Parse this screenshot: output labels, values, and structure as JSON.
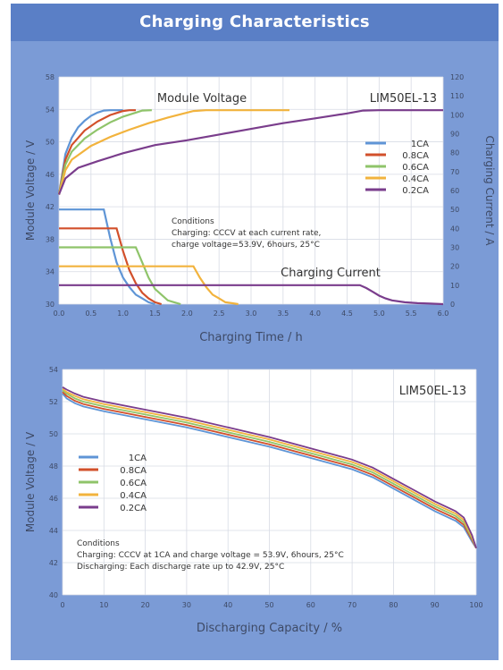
{
  "page": {
    "title": "Charging Characteristics",
    "colors": {
      "panel": "#7b9bd6",
      "title_bar": "#5a7fc6",
      "plot_bg": "#ffffff",
      "grid": "#d7dbe4",
      "axis_text": "#3e4a66"
    }
  },
  "chart_data": [
    {
      "type": "line",
      "model": "LIM50EL-13",
      "xlabel": "Charging Time / h",
      "ylabel": "Module Voltage / V",
      "y2label": "Charging Current / A",
      "xlim": [
        0,
        6
      ],
      "ylim": [
        30,
        58
      ],
      "y2lim": [
        0,
        120
      ],
      "x_ticks": [
        "0.0",
        "0.5",
        "1.0",
        "1.5",
        "2.0",
        "2.5",
        "3.0",
        "3.5",
        "4.0",
        "4.5",
        "5.0",
        "5.5",
        "6.0"
      ],
      "y_ticks": [
        "30",
        "34",
        "38",
        "42",
        "46",
        "50",
        "54",
        "58"
      ],
      "y2_ticks": [
        "0",
        "10",
        "20",
        "30",
        "40",
        "50",
        "60",
        "70",
        "80",
        "90",
        "100",
        "110",
        "120"
      ],
      "grid": true,
      "legend_position": "right",
      "annotations": {
        "voltage_label": "Module Voltage",
        "current_label": "Charging Current",
        "conditions_title": "Conditions",
        "conditions_line1": "Charging: CCCV at each current rate,",
        "conditions_line2": "charge voltage=53.9V, 6hours, 25°C"
      },
      "series": [
        {
          "name": "1CA",
          "color": "#5f95d6",
          "voltage": {
            "x": [
              0,
              0.1,
              0.2,
              0.3,
              0.4,
              0.5,
              0.6,
              0.7,
              0.8,
              0.85,
              0.9,
              1.0
            ],
            "y": [
              43.5,
              48.5,
              50.5,
              51.8,
              52.6,
              53.2,
              53.6,
              53.85,
              53.9,
              53.9,
              53.9,
              53.9
            ]
          },
          "current": {
            "x": [
              0,
              0.5,
              0.7,
              0.8,
              0.9,
              1.0,
              1.1,
              1.2,
              1.3,
              1.4,
              1.5
            ],
            "y": [
              50,
              50,
              50,
              35,
              22,
              14,
              9,
              5,
              3,
              1,
              0
            ]
          }
        },
        {
          "name": "0.8CA",
          "color": "#d2502b",
          "voltage": {
            "x": [
              0,
              0.1,
              0.2,
              0.4,
              0.6,
              0.8,
              1.0,
              1.1,
              1.2
            ],
            "y": [
              43.5,
              47.8,
              49.6,
              51.4,
              52.5,
              53.3,
              53.8,
              53.9,
              53.9
            ]
          },
          "current": {
            "x": [
              0,
              0.9,
              1.0,
              1.1,
              1.2,
              1.3,
              1.4,
              1.5,
              1.6
            ],
            "y": [
              40,
              40,
              28,
              18,
              11,
              6,
              3,
              1,
              0
            ]
          }
        },
        {
          "name": "0.6CA",
          "color": "#8fc46a",
          "voltage": {
            "x": [
              0,
              0.1,
              0.2,
              0.4,
              0.6,
              0.8,
              1.0,
              1.2,
              1.3,
              1.45
            ],
            "y": [
              43.5,
              47.2,
              48.8,
              50.4,
              51.5,
              52.4,
              53.1,
              53.6,
              53.85,
              53.9
            ]
          },
          "current": {
            "x": [
              0,
              1.2,
              1.3,
              1.4,
              1.5,
              1.6,
              1.7,
              1.8,
              1.9
            ],
            "y": [
              30,
              30,
              22,
              14,
              8,
              5,
              2,
              1,
              0
            ]
          }
        },
        {
          "name": "0.4CA",
          "color": "#f2b33d",
          "voltage": {
            "x": [
              0,
              0.1,
              0.2,
              0.5,
              0.8,
              1.1,
              1.4,
              1.7,
              2.0,
              2.1,
              2.3,
              3.6
            ],
            "y": [
              43.5,
              46.5,
              47.8,
              49.5,
              50.6,
              51.5,
              52.3,
              53.0,
              53.6,
              53.8,
              53.9,
              53.9
            ]
          },
          "current": {
            "x": [
              0,
              2.1,
              2.2,
              2.3,
              2.4,
              2.5,
              2.6,
              2.7,
              2.8
            ],
            "y": [
              20,
              20,
              14,
              9,
              5,
              3,
              1,
              0.5,
              0
            ]
          }
        },
        {
          "name": "0.2CA",
          "color": "#7a3d8c",
          "voltage": {
            "x": [
              0,
              0.1,
              0.3,
              0.6,
              1.0,
              1.5,
              2.0,
              2.5,
              3.0,
              3.5,
              4.0,
              4.5,
              4.75,
              5.0,
              6.0
            ],
            "y": [
              43.5,
              45.5,
              46.8,
              47.6,
              48.6,
              49.6,
              50.2,
              50.9,
              51.6,
              52.3,
              52.9,
              53.5,
              53.85,
              53.9,
              53.9
            ]
          },
          "current": {
            "x": [
              0,
              4.7,
              4.8,
              4.9,
              5.0,
              5.1,
              5.2,
              5.4,
              5.6,
              5.8,
              6.0
            ],
            "y": [
              10,
              10,
              8.5,
              6.5,
              4.5,
              3,
              2,
              1,
              0.5,
              0.3,
              0
            ]
          }
        }
      ]
    },
    {
      "type": "line",
      "model": "LIM50EL-13",
      "xlabel": "Discharging Capacity / %",
      "ylabel": "Module Voltage / V",
      "xlim": [
        0,
        100
      ],
      "ylim": [
        40,
        54
      ],
      "x_ticks": [
        "0",
        "10",
        "20",
        "30",
        "40",
        "50",
        "60",
        "70",
        "80",
        "90",
        "100"
      ],
      "y_ticks": [
        "40",
        "42",
        "44",
        "46",
        "48",
        "50",
        "52",
        "54"
      ],
      "grid": true,
      "legend_position": "left",
      "annotations": {
        "conditions_title": "Conditions",
        "conditions_line1": "Charging: CCCV at 1CA and charge voltage = 53.9V, 6hours, 25°C",
        "conditions_line2": "Discharging: Each discharge rate up to 42.9V, 25°C"
      },
      "series": [
        {
          "name": "1CA",
          "color": "#5f95d6",
          "x": [
            0,
            1,
            3,
            5,
            10,
            20,
            30,
            40,
            50,
            60,
            70,
            75,
            80,
            85,
            90,
            95,
            97,
            99,
            100
          ],
          "y": [
            52.5,
            52.2,
            51.9,
            51.7,
            51.4,
            50.9,
            50.4,
            49.8,
            49.2,
            48.5,
            47.8,
            47.3,
            46.6,
            45.9,
            45.2,
            44.6,
            44.2,
            43.3,
            42.9
          ]
        },
        {
          "name": "0.8CA",
          "color": "#d2502b",
          "x": [
            0,
            1,
            3,
            5,
            10,
            20,
            30,
            40,
            50,
            60,
            70,
            75,
            80,
            85,
            90,
            95,
            97,
            99,
            100
          ],
          "y": [
            52.6,
            52.35,
            52.05,
            51.85,
            51.55,
            51.05,
            50.55,
            49.95,
            49.35,
            48.65,
            47.95,
            47.45,
            46.75,
            46.05,
            45.35,
            44.75,
            44.35,
            43.4,
            42.9
          ]
        },
        {
          "name": "0.6CA",
          "color": "#8fc46a",
          "x": [
            0,
            1,
            3,
            5,
            10,
            20,
            30,
            40,
            50,
            60,
            70,
            75,
            80,
            85,
            90,
            95,
            97,
            99,
            100
          ],
          "y": [
            52.7,
            52.5,
            52.2,
            52.0,
            51.7,
            51.2,
            50.7,
            50.1,
            49.5,
            48.8,
            48.1,
            47.6,
            46.9,
            46.2,
            45.5,
            44.9,
            44.5,
            43.5,
            42.9
          ]
        },
        {
          "name": "0.4CA",
          "color": "#f2b33d",
          "x": [
            0,
            1,
            3,
            5,
            10,
            20,
            30,
            40,
            50,
            60,
            70,
            75,
            80,
            85,
            90,
            95,
            97,
            99,
            100
          ],
          "y": [
            52.8,
            52.6,
            52.35,
            52.15,
            51.85,
            51.35,
            50.85,
            50.25,
            49.65,
            48.95,
            48.25,
            47.75,
            47.05,
            46.35,
            45.65,
            45.05,
            44.65,
            43.6,
            42.9
          ]
        },
        {
          "name": "0.2CA",
          "color": "#7a3d8c",
          "x": [
            0,
            1,
            3,
            5,
            10,
            20,
            30,
            40,
            50,
            60,
            70,
            75,
            80,
            85,
            90,
            95,
            97,
            99,
            100
          ],
          "y": [
            52.9,
            52.75,
            52.5,
            52.3,
            52.0,
            51.5,
            51.0,
            50.4,
            49.8,
            49.1,
            48.4,
            47.9,
            47.2,
            46.5,
            45.8,
            45.2,
            44.8,
            43.7,
            42.9
          ]
        }
      ]
    }
  ]
}
